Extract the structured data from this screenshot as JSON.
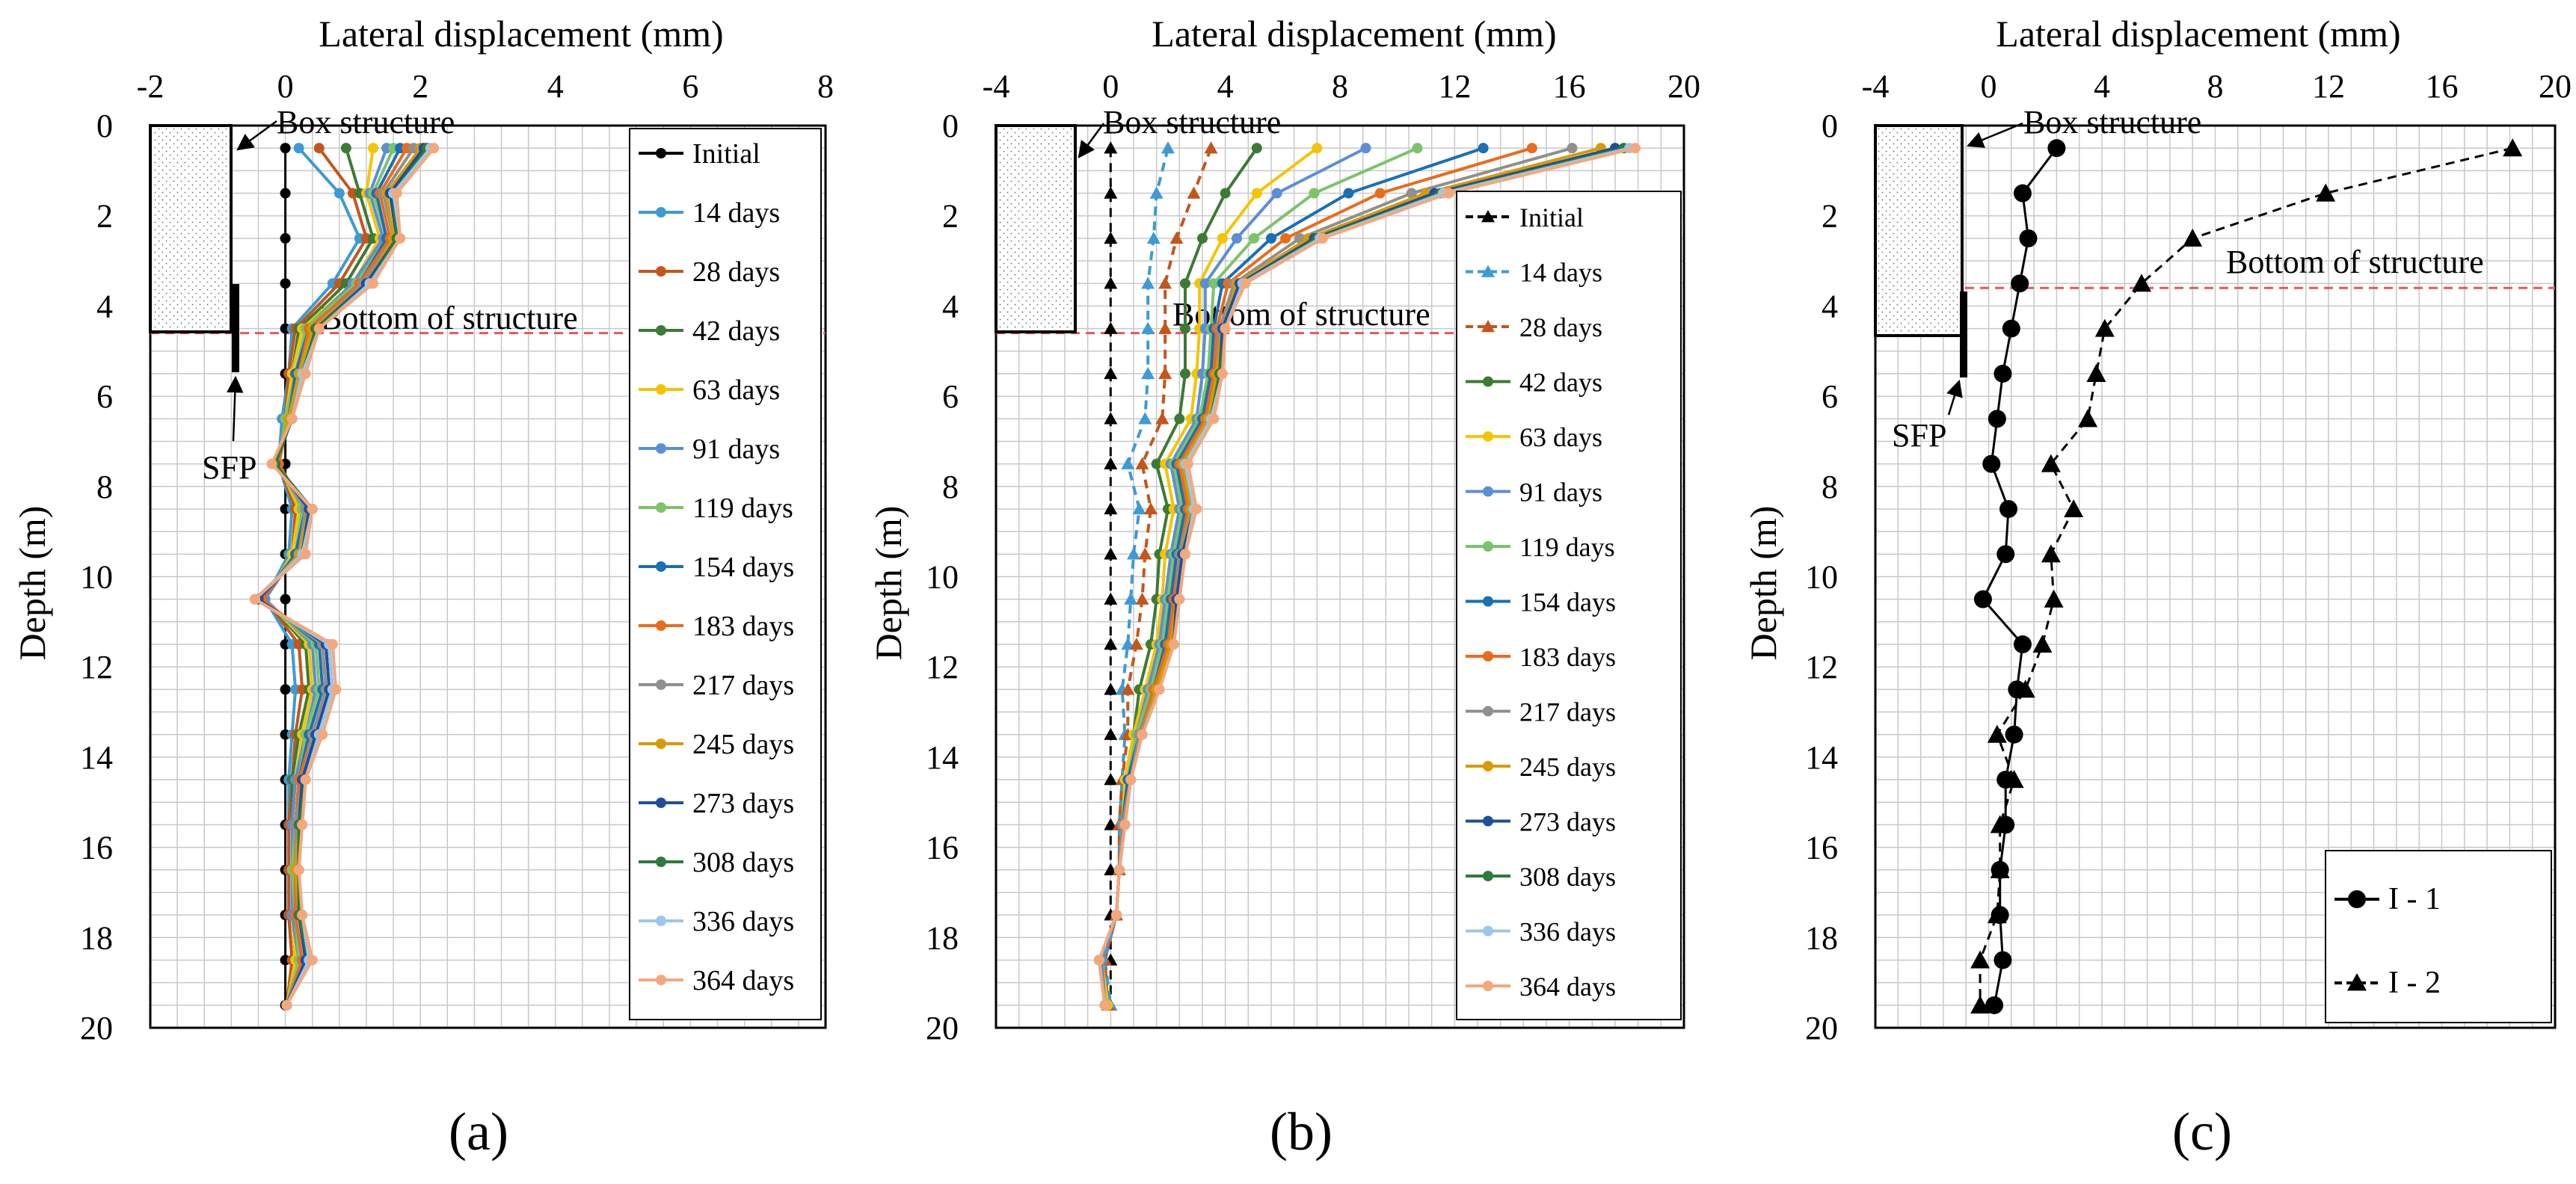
{
  "figure": {
    "panel_labels": [
      "(a)",
      "(b)",
      "(c)"
    ],
    "depth_axis_label": "Depth (m)",
    "disp_axis_label": "Lateral displacement (mm)",
    "annotations": {
      "box_structure": "Box structure",
      "bottom_a": "Bottom of  structure",
      "bottom_b": "Bottom of structure",
      "bottom_c": "Bottom of structure",
      "sfp": "SFP"
    }
  },
  "colors": {
    "Initial": "#000000",
    "14 days": "#3c9ad6",
    "28 days": "#c4561c",
    "42 days": "#3c7a35",
    "63 days": "#f5c400",
    "91 days": "#5b8ed6",
    "119 days": "#7cc36a",
    "154 days": "#1a6fb5",
    "183 days": "#ea6b1c",
    "217 days": "#8f8f8f",
    "245 days": "#d99a00",
    "273 days": "#1f4e9c",
    "308 days": "#2f7a3a",
    "336 days": "#9cc7ea",
    "364 days": "#f5a77c",
    "grid": "#c8c8c8",
    "dashed_red": "#e05a5a"
  },
  "chart_data": [
    {
      "panel": "(a)",
      "type": "line",
      "orientation": "depth-profile",
      "xlabel": "Lateral displacement (mm)",
      "ylabel": "Depth (m)",
      "xlim": [
        -2,
        8
      ],
      "ylim": [
        0,
        20
      ],
      "xticks": [
        -2,
        0,
        2,
        4,
        6,
        8
      ],
      "yticks": [
        0,
        2,
        4,
        6,
        8,
        10,
        12,
        14,
        16,
        18,
        20
      ],
      "depths": [
        0.5,
        1.5,
        2.5,
        3.5,
        4.5,
        5.5,
        6.5,
        7.5,
        8.5,
        9.5,
        10.5,
        11.5,
        12.5,
        13.5,
        14.5,
        15.5,
        16.5,
        17.5,
        18.5,
        19.5
      ],
      "structure_depth": 4.6,
      "series": [
        {
          "name": "Initial",
          "values": [
            0,
            0,
            0,
            0,
            0,
            0,
            0,
            0,
            0,
            0,
            0,
            0,
            0,
            0,
            0,
            0,
            0,
            0,
            0,
            0
          ]
        },
        {
          "name": "14 days",
          "values": [
            0.2,
            0.8,
            1.1,
            0.7,
            0.1,
            0.05,
            -0.05,
            -0.1,
            0.1,
            0.05,
            -0.3,
            0.1,
            0.15,
            0.1,
            0.05,
            0.05,
            0.05,
            0.05,
            0.1,
            0.02
          ]
        },
        {
          "name": "28 days",
          "values": [
            0.5,
            1.0,
            1.2,
            0.8,
            0.15,
            0.05,
            0,
            -0.1,
            0.15,
            0.1,
            -0.3,
            0.2,
            0.25,
            0.15,
            0.1,
            0.05,
            0.05,
            0.05,
            0.1,
            0.02
          ]
        },
        {
          "name": "42 days",
          "values": [
            0.9,
            1.1,
            1.3,
            0.9,
            0.2,
            0.1,
            0,
            -0.1,
            0.2,
            0.1,
            -0.3,
            0.3,
            0.35,
            0.2,
            0.1,
            0.1,
            0.1,
            0.1,
            0.15,
            0.02
          ]
        },
        {
          "name": "63 days",
          "values": [
            1.3,
            1.2,
            1.4,
            1.0,
            0.25,
            0.1,
            0,
            -0.1,
            0.2,
            0.1,
            -0.3,
            0.35,
            0.4,
            0.25,
            0.15,
            0.1,
            0.1,
            0.1,
            0.15,
            0.02
          ]
        },
        {
          "name": "91 days",
          "values": [
            1.5,
            1.25,
            1.45,
            1.0,
            0.3,
            0.15,
            0,
            -0.1,
            0.25,
            0.15,
            -0.3,
            0.4,
            0.45,
            0.3,
            0.15,
            0.1,
            0.1,
            0.1,
            0.2,
            0.02
          ]
        },
        {
          "name": "119 days",
          "values": [
            1.6,
            1.3,
            1.5,
            1.05,
            0.3,
            0.15,
            0,
            -0.1,
            0.25,
            0.15,
            -0.35,
            0.45,
            0.5,
            0.3,
            0.2,
            0.15,
            0.1,
            0.15,
            0.2,
            0.02
          ]
        },
        {
          "name": "154 days",
          "values": [
            1.7,
            1.35,
            1.5,
            1.1,
            0.35,
            0.15,
            0.05,
            -0.1,
            0.3,
            0.15,
            -0.35,
            0.5,
            0.55,
            0.35,
            0.2,
            0.15,
            0.15,
            0.15,
            0.25,
            0.02
          ]
        },
        {
          "name": "183 days",
          "values": [
            1.8,
            1.4,
            1.55,
            1.1,
            0.35,
            0.2,
            0.05,
            -0.1,
            0.3,
            0.2,
            -0.35,
            0.55,
            0.6,
            0.4,
            0.2,
            0.15,
            0.15,
            0.15,
            0.25,
            0.02
          ]
        },
        {
          "name": "217 days",
          "values": [
            1.9,
            1.45,
            1.6,
            1.15,
            0.4,
            0.2,
            0.05,
            -0.15,
            0.3,
            0.2,
            -0.4,
            0.55,
            0.6,
            0.4,
            0.25,
            0.15,
            0.15,
            0.2,
            0.3,
            0.02
          ]
        },
        {
          "name": "245 days",
          "values": [
            2.0,
            1.5,
            1.6,
            1.2,
            0.4,
            0.2,
            0.05,
            -0.15,
            0.35,
            0.2,
            -0.4,
            0.6,
            0.65,
            0.45,
            0.25,
            0.2,
            0.15,
            0.2,
            0.3,
            0.02
          ]
        },
        {
          "name": "273 days",
          "values": [
            2.05,
            1.55,
            1.65,
            1.2,
            0.45,
            0.25,
            0.1,
            -0.15,
            0.35,
            0.25,
            -0.4,
            0.6,
            0.65,
            0.45,
            0.25,
            0.2,
            0.2,
            0.2,
            0.3,
            0.02
          ]
        },
        {
          "name": "308 days",
          "values": [
            2.1,
            1.6,
            1.65,
            1.25,
            0.45,
            0.25,
            0.1,
            -0.15,
            0.4,
            0.25,
            -0.45,
            0.65,
            0.7,
            0.5,
            0.3,
            0.2,
            0.2,
            0.2,
            0.35,
            0.02
          ]
        },
        {
          "name": "336 days",
          "values": [
            2.15,
            1.6,
            1.7,
            1.25,
            0.5,
            0.25,
            0.1,
            -0.2,
            0.4,
            0.25,
            -0.45,
            0.65,
            0.7,
            0.5,
            0.3,
            0.25,
            0.2,
            0.25,
            0.35,
            0.02
          ]
        },
        {
          "name": "364 days",
          "values": [
            2.2,
            1.65,
            1.7,
            1.3,
            0.5,
            0.3,
            0.1,
            -0.2,
            0.4,
            0.3,
            -0.45,
            0.7,
            0.75,
            0.55,
            0.3,
            0.25,
            0.2,
            0.25,
            0.4,
            0.02
          ]
        }
      ]
    },
    {
      "panel": "(b)",
      "type": "line",
      "orientation": "depth-profile",
      "xlabel": "Lateral displacement (mm)",
      "ylabel": "Depth (m)",
      "xlim": [
        -4,
        20
      ],
      "ylim": [
        0,
        20
      ],
      "xticks": [
        -4,
        0,
        4,
        8,
        12,
        16,
        20
      ],
      "yticks": [
        0,
        2,
        4,
        6,
        8,
        10,
        12,
        14,
        16,
        18,
        20
      ],
      "depths": [
        0.5,
        1.5,
        2.5,
        3.5,
        4.5,
        5.5,
        6.5,
        7.5,
        8.5,
        9.5,
        10.5,
        11.5,
        12.5,
        13.5,
        14.5,
        15.5,
        16.5,
        17.5,
        18.5,
        19.5
      ],
      "structure_depth": 4.6,
      "series": [
        {
          "name": "Initial",
          "values": [
            0,
            0,
            0,
            0,
            0,
            0,
            0,
            0,
            0,
            0,
            0,
            0,
            0,
            0,
            0,
            0,
            0,
            0,
            0,
            0
          ]
        },
        {
          "name": "14 days",
          "values": [
            2.0,
            1.6,
            1.5,
            1.3,
            1.3,
            1.3,
            1.2,
            0.6,
            1.0,
            0.8,
            0.7,
            0.6,
            0.4,
            0.5,
            0.4,
            0.3,
            0.3,
            0.2,
            -0.2,
            0.0
          ]
        },
        {
          "name": "28 days",
          "values": [
            3.5,
            2.9,
            2.3,
            1.9,
            1.9,
            1.9,
            1.8,
            1.1,
            1.4,
            1.2,
            1.1,
            0.9,
            0.6,
            0.6,
            0.4,
            0.3,
            0.3,
            0.2,
            -0.2,
            -0.1
          ]
        },
        {
          "name": "42 days",
          "values": [
            5.1,
            4.0,
            3.2,
            2.6,
            2.6,
            2.6,
            2.4,
            1.6,
            2.0,
            1.7,
            1.6,
            1.4,
            1.0,
            0.8,
            0.5,
            0.4,
            0.3,
            0.2,
            -0.3,
            -0.1
          ]
        },
        {
          "name": "63 days",
          "values": [
            7.2,
            5.1,
            3.9,
            3.1,
            3.1,
            3.0,
            2.8,
            1.9,
            2.2,
            1.9,
            1.8,
            1.6,
            1.2,
            0.8,
            0.5,
            0.4,
            0.3,
            0.2,
            -0.3,
            -0.1
          ]
        },
        {
          "name": "91 days",
          "values": [
            8.9,
            5.8,
            4.4,
            3.3,
            3.3,
            3.2,
            3.0,
            2.1,
            2.4,
            2.1,
            1.9,
            1.7,
            1.3,
            0.9,
            0.6,
            0.4,
            0.3,
            0.2,
            -0.3,
            -0.2
          ]
        },
        {
          "name": "119 days",
          "values": [
            10.7,
            7.1,
            5.0,
            3.6,
            3.5,
            3.4,
            3.1,
            2.2,
            2.5,
            2.2,
            2.0,
            1.8,
            1.4,
            0.9,
            0.6,
            0.4,
            0.3,
            0.2,
            -0.4,
            -0.2
          ]
        },
        {
          "name": "154 days",
          "values": [
            13.0,
            8.3,
            5.6,
            3.9,
            3.6,
            3.5,
            3.2,
            2.3,
            2.6,
            2.3,
            2.1,
            1.9,
            1.5,
            1.0,
            0.6,
            0.4,
            0.3,
            0.2,
            -0.4,
            -0.2
          ]
        },
        {
          "name": "183 days",
          "values": [
            14.7,
            9.4,
            6.1,
            4.1,
            3.7,
            3.6,
            3.3,
            2.4,
            2.7,
            2.4,
            2.2,
            2.0,
            1.5,
            1.0,
            0.7,
            0.4,
            0.3,
            0.2,
            -0.4,
            -0.2
          ]
        },
        {
          "name": "217 days",
          "values": [
            16.1,
            10.5,
            6.6,
            4.3,
            3.8,
            3.7,
            3.4,
            2.5,
            2.8,
            2.4,
            2.3,
            2.1,
            1.6,
            1.0,
            0.7,
            0.4,
            0.3,
            0.2,
            -0.4,
            -0.2
          ]
        },
        {
          "name": "245 days",
          "values": [
            17.1,
            11.0,
            6.9,
            4.4,
            3.9,
            3.7,
            3.4,
            2.5,
            2.8,
            2.5,
            2.3,
            2.1,
            1.6,
            1.1,
            0.7,
            0.5,
            0.3,
            0.2,
            -0.4,
            -0.2
          ]
        },
        {
          "name": "273 days",
          "values": [
            17.6,
            11.3,
            7.1,
            4.5,
            3.9,
            3.8,
            3.5,
            2.6,
            2.9,
            2.5,
            2.3,
            2.2,
            1.7,
            1.1,
            0.7,
            0.5,
            0.3,
            0.2,
            -0.4,
            -0.2
          ]
        },
        {
          "name": "308 days",
          "values": [
            17.9,
            11.5,
            7.2,
            4.6,
            4.0,
            3.8,
            3.5,
            2.6,
            2.9,
            2.6,
            2.4,
            2.2,
            1.7,
            1.1,
            0.7,
            0.5,
            0.3,
            0.2,
            -0.4,
            -0.2
          ]
        },
        {
          "name": "336 days",
          "values": [
            18.1,
            11.6,
            7.3,
            4.6,
            4.0,
            3.9,
            3.5,
            2.6,
            2.9,
            2.6,
            2.4,
            2.2,
            1.7,
            1.1,
            0.7,
            0.5,
            0.3,
            0.2,
            -0.4,
            -0.2
          ]
        },
        {
          "name": "364 days",
          "values": [
            18.3,
            11.8,
            7.4,
            4.7,
            4.0,
            3.9,
            3.6,
            2.7,
            3.0,
            2.6,
            2.4,
            2.2,
            1.7,
            1.1,
            0.7,
            0.5,
            0.3,
            0.2,
            -0.4,
            -0.2
          ]
        }
      ]
    },
    {
      "panel": "(c)",
      "type": "line",
      "orientation": "depth-profile",
      "xlabel": "Lateral displacement (mm)",
      "ylabel": "Depth (m)",
      "xlim": [
        -4,
        20
      ],
      "ylim": [
        0,
        20
      ],
      "xticks": [
        -4,
        0,
        4,
        8,
        12,
        16,
        20
      ],
      "yticks": [
        0,
        2,
        4,
        6,
        8,
        10,
        12,
        14,
        16,
        18,
        20
      ],
      "structure_depth": 3.6,
      "series": [
        {
          "name": "I - 1",
          "marker": "circle",
          "dash": "solid",
          "depths": [
            0.5,
            1.5,
            2.5,
            3.5,
            4.5,
            5.5,
            6.5,
            7.5,
            8.5,
            9.5,
            10.5,
            11.5,
            12.5,
            13.5,
            14.5,
            15.5,
            16.5,
            17.5,
            18.5,
            19.5
          ],
          "values": [
            2.4,
            1.2,
            1.4,
            1.1,
            0.8,
            0.5,
            0.3,
            0.1,
            0.7,
            0.6,
            -0.2,
            1.2,
            1.0,
            0.9,
            0.6,
            0.6,
            0.4,
            0.4,
            0.5,
            0.2
          ]
        },
        {
          "name": "I - 2",
          "marker": "triangle",
          "dash": "dashed",
          "depths": [
            0.5,
            1.5,
            2.5,
            3.5,
            4.5,
            5.5,
            6.5,
            7.5,
            8.5,
            9.5,
            10.5,
            11.5,
            12.5,
            13.5,
            14.5,
            15.5,
            16.5,
            17.5,
            18.5,
            19.5
          ],
          "values": [
            18.5,
            11.9,
            7.2,
            5.4,
            4.1,
            3.8,
            3.5,
            2.2,
            3.0,
            2.2,
            2.3,
            1.9,
            1.3,
            0.3,
            0.9,
            0.4,
            0.4,
            0.3,
            -0.3,
            -0.3
          ]
        }
      ]
    }
  ]
}
